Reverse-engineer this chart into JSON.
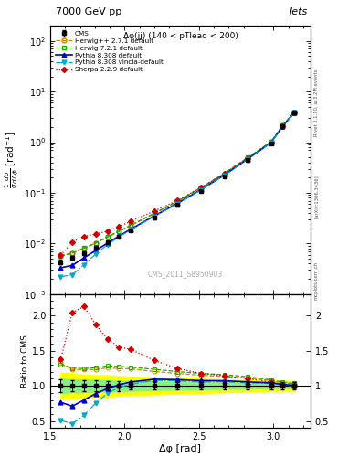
{
  "title_top": "7000 GeV pp",
  "title_right": "Jets",
  "annotation": "Δφ(jj) (140 < pTlead < 200)",
  "watermark": "CMS_2011_S8950903",
  "xlabel": "Δφ [rad]",
  "ylabel_ratio": "Ratio to CMS",
  "side_label1": "Rivet 3.1.10, ≥ 3.2M events",
  "side_label2": "[arXiv:1306.3436]",
  "side_label3": "mcplots.cern.ch",
  "xlim": [
    1.5,
    3.25
  ],
  "ylim_main": [
    0.001,
    200
  ],
  "ylim_ratio": [
    0.4,
    2.3
  ],
  "cms_x": [
    1.57,
    1.648,
    1.727,
    1.806,
    1.885,
    1.963,
    2.042,
    2.199,
    2.356,
    2.513,
    2.67,
    2.827,
    2.984,
    3.063,
    3.141
  ],
  "cms_y": [
    0.0043,
    0.0052,
    0.0065,
    0.0082,
    0.0106,
    0.0138,
    0.0182,
    0.032,
    0.057,
    0.108,
    0.21,
    0.44,
    0.94,
    2.05,
    3.8
  ],
  "cms_yerr": [
    0.0004,
    0.0004,
    0.0005,
    0.0006,
    0.0007,
    0.001,
    0.001,
    0.0018,
    0.003,
    0.0055,
    0.011,
    0.022,
    0.047,
    0.1,
    0.18
  ],
  "herwig271_x": [
    1.57,
    1.648,
    1.727,
    1.806,
    1.885,
    1.963,
    2.042,
    2.199,
    2.356,
    2.513,
    2.67,
    2.827,
    2.984,
    3.063,
    3.141
  ],
  "herwig271_y": [
    0.0057,
    0.0064,
    0.008,
    0.0101,
    0.0133,
    0.0172,
    0.0226,
    0.0385,
    0.067,
    0.124,
    0.238,
    0.488,
    1.01,
    2.13,
    3.9
  ],
  "herwig721_x": [
    1.57,
    1.648,
    1.727,
    1.806,
    1.885,
    1.963,
    2.042,
    2.199,
    2.356,
    2.513,
    2.67,
    2.827,
    2.984,
    3.063,
    3.141
  ],
  "herwig721_y": [
    0.0056,
    0.0065,
    0.0081,
    0.0103,
    0.0136,
    0.0176,
    0.023,
    0.0395,
    0.0685,
    0.127,
    0.243,
    0.497,
    1.02,
    2.16,
    3.93
  ],
  "pythia8_x": [
    1.57,
    1.648,
    1.727,
    1.806,
    1.885,
    1.963,
    2.042,
    2.199,
    2.356,
    2.513,
    2.67,
    2.827,
    2.984,
    3.063,
    3.141
  ],
  "pythia8_y": [
    0.0033,
    0.0037,
    0.0052,
    0.0073,
    0.0102,
    0.014,
    0.0192,
    0.035,
    0.062,
    0.116,
    0.225,
    0.465,
    0.98,
    2.09,
    3.82
  ],
  "pythia8v_x": [
    1.57,
    1.648,
    1.727,
    1.806,
    1.885,
    1.963,
    2.042,
    2.199,
    2.356,
    2.513,
    2.67,
    2.827,
    2.984,
    3.063,
    3.141
  ],
  "pythia8v_y": [
    0.0022,
    0.0024,
    0.0038,
    0.0062,
    0.0095,
    0.0135,
    0.0186,
    0.0345,
    0.061,
    0.114,
    0.222,
    0.459,
    0.97,
    2.07,
    3.8
  ],
  "sherpa_x": [
    1.57,
    1.648,
    1.727,
    1.806,
    1.885,
    1.963,
    2.042,
    2.199,
    2.356,
    2.513,
    2.67,
    2.827,
    2.984,
    3.063,
    3.141
  ],
  "sherpa_y": [
    0.0059,
    0.0106,
    0.0138,
    0.0153,
    0.0176,
    0.0214,
    0.0276,
    0.0435,
    0.071,
    0.127,
    0.24,
    0.485,
    0.99,
    2.08,
    3.82
  ],
  "cms_band_yellow_lo": [
    0.82,
    0.82,
    0.84,
    0.85,
    0.85,
    0.86,
    0.87,
    0.88,
    0.89,
    0.9,
    0.91,
    0.92,
    0.93,
    0.93,
    0.93
  ],
  "cms_band_yellow_hi": [
    1.18,
    1.18,
    1.16,
    1.15,
    1.15,
    1.14,
    1.13,
    1.12,
    1.11,
    1.1,
    1.09,
    1.08,
    1.07,
    1.07,
    1.07
  ],
  "cms_band_green_lo": [
    0.9,
    0.91,
    0.91,
    0.92,
    0.92,
    0.93,
    0.93,
    0.94,
    0.95,
    0.95,
    0.96,
    0.96,
    0.97,
    0.97,
    0.97
  ],
  "cms_band_green_hi": [
    1.1,
    1.09,
    1.09,
    1.08,
    1.08,
    1.07,
    1.07,
    1.06,
    1.05,
    1.05,
    1.04,
    1.04,
    1.03,
    1.03,
    1.03
  ],
  "color_cms": "#000000",
  "color_herwig271": "#cc8800",
  "color_herwig721": "#22aa00",
  "color_pythia8": "#0000cc",
  "color_pythia8v": "#00aacc",
  "color_sherpa": "#cc0000",
  "bg_color": "#ffffff"
}
